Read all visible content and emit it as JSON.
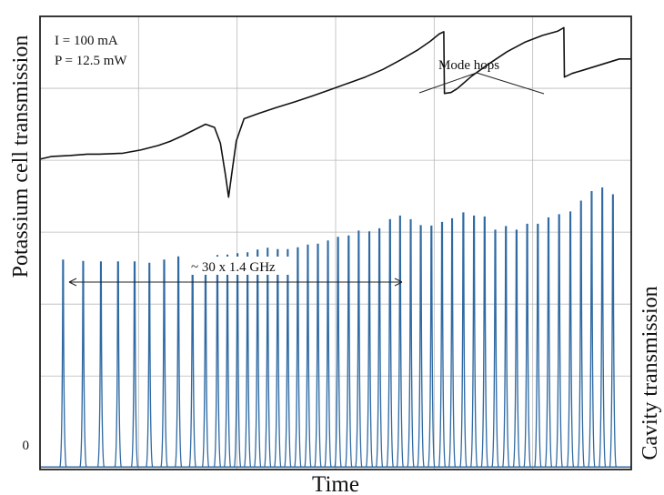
{
  "chart_data": {
    "type": "line",
    "xlabel": "Time",
    "ylabel_left": "Potassium cell transmission",
    "ylabel_right": "Cavity transmission",
    "zero_label": "0",
    "grid": true,
    "annotations": {
      "current": "I = 100 mA",
      "power": "P = 12.5 mW",
      "mode_hops": "Mode hops",
      "span": "~ 30 x 1.4 GHz"
    },
    "colors": {
      "potassium_trace": "#111111",
      "cavity_trace": "#2f6aa3",
      "grid": "#b9b9b9",
      "frame": "#222222"
    },
    "x_range": [
      0,
      100
    ],
    "y_range": [
      0,
      100
    ],
    "series": [
      {
        "key": "potassium",
        "x": [
          0,
          2,
          5,
          8,
          10,
          12,
          14,
          17,
          20,
          22,
          24,
          26,
          28,
          29.5,
          30.5,
          31.4,
          31.9,
          32.4,
          33.2,
          34.5,
          37,
          40,
          43,
          46,
          49,
          52,
          55,
          58,
          61,
          64,
          66,
          67.5,
          68.3,
          68.4,
          69.5,
          70.5,
          73,
          76,
          79,
          82,
          85,
          87.5,
          88.6,
          88.7,
          90,
          92,
          94,
          96,
          98,
          100
        ],
        "y": [
          68.5,
          69.1,
          69.3,
          69.6,
          69.6,
          69.7,
          69.8,
          70.5,
          71.5,
          72.4,
          73.6,
          74.9,
          76.2,
          75.5,
          72,
          64.7,
          60.1,
          65,
          72.5,
          77.4,
          78.6,
          79.9,
          81.1,
          82.4,
          83.8,
          85.2,
          86.6,
          88.3,
          90.4,
          92.7,
          94.5,
          96.1,
          96.6,
          83,
          83.2,
          84,
          86.8,
          89.6,
          92.2,
          94.3,
          95.8,
          96.7,
          97.5,
          86.6,
          87.4,
          88.2,
          89,
          89.8,
          90.6,
          90.6
        ]
      },
      {
        "key": "cavity",
        "peaks_x": [
          3.9,
          7.3,
          10.3,
          13.2,
          16.0,
          18.5,
          21.0,
          23.4,
          25.8,
          28.0,
          30.0,
          31.7,
          33.4,
          35.1,
          36.8,
          38.5,
          40.2,
          41.9,
          43.6,
          45.3,
          47.0,
          48.7,
          50.4,
          52.2,
          53.9,
          55.7,
          57.4,
          59.2,
          60.9,
          62.7,
          64.4,
          66.2,
          68.0,
          69.7,
          71.6,
          73.4,
          75.2,
          77.0,
          78.8,
          80.6,
          82.4,
          84.2,
          86.0,
          87.8,
          89.7,
          91.5,
          93.3,
          95.1,
          96.9
        ],
        "peaks_y": [
          46.2,
          45.9,
          45.8,
          45.8,
          45.8,
          45.5,
          46.2,
          46.9,
          46.2,
          46.2,
          47.2,
          47.3,
          47.6,
          47.8,
          48.4,
          48.8,
          48.5,
          48.5,
          48.9,
          49.5,
          49.7,
          50.4,
          51.2,
          51.5,
          52.6,
          52.4,
          53.1,
          55.1,
          55.9,
          55.1,
          53.8,
          53.7,
          54.5,
          55.3,
          56.6,
          55.9,
          55.7,
          52.8,
          53.6,
          52.8,
          54.1,
          54.1,
          55.5,
          56.2,
          56.8,
          59.2,
          61.3,
          62.1,
          60.6
        ]
      }
    ]
  }
}
